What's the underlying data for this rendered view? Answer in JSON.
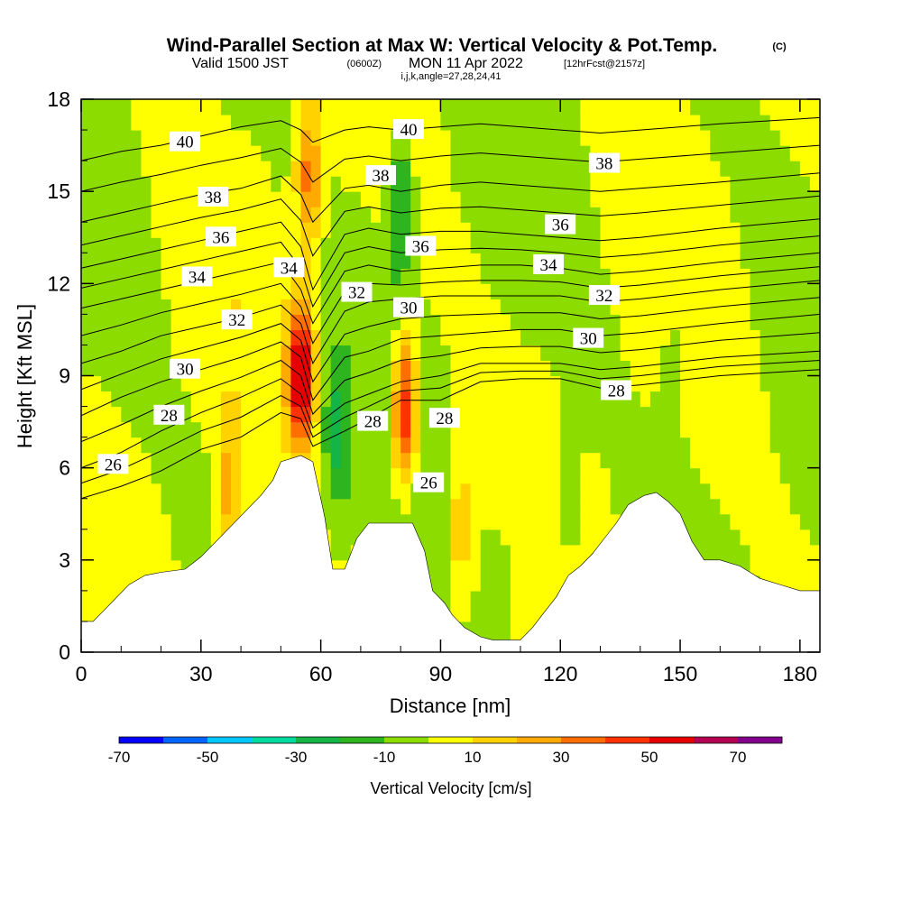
{
  "chart_data": {
    "type": "contour-section",
    "title": "Wind-Parallel Section at Max W: Vertical Velocity & Pot.Temp.",
    "copyright": "(C)",
    "subtitle_valid": "Valid 1500 JST",
    "subtitle_utc": "(0600Z)",
    "subtitle_date": "MON 11 Apr 2022",
    "subtitle_fcst": "[12hrFcst@2157z]",
    "subtitle_ijk": "i,j,k,angle=27,28,24,41",
    "xlabel": "Distance [nm]",
    "ylabel": "Height [Kft MSL]",
    "xlim": [
      0,
      185
    ],
    "ylim": [
      0,
      18
    ],
    "x_ticks": [
      0,
      30,
      60,
      90,
      120,
      150,
      180
    ],
    "y_ticks": [
      0,
      3,
      6,
      9,
      12,
      15,
      18
    ],
    "x_tick_labels": [
      "0",
      "30",
      "60",
      "90",
      "120",
      "150",
      "180"
    ],
    "y_tick_labels": [
      "0",
      "3",
      "6",
      "9",
      "12",
      "15",
      "18"
    ],
    "colorbar": {
      "title": "Vertical Velocity [cm/s]",
      "min": -70,
      "max": 80,
      "step": 10,
      "labels": [
        "-70",
        "-50",
        "-30",
        "-10",
        "10",
        "30",
        "50",
        "70"
      ],
      "colors": [
        "#0000ff",
        "#0064ff",
        "#00c8ff",
        "#00dca0",
        "#14b446",
        "#2db41e",
        "#8cdc00",
        "#ffff00",
        "#ffd200",
        "#ffaa00",
        "#ff6e00",
        "#ff3200",
        "#e60000",
        "#b40050",
        "#82008c"
      ]
    },
    "terrain_profile": {
      "x_nm": [
        0,
        3,
        6,
        9,
        12,
        16,
        20,
        26,
        30,
        33,
        36,
        39,
        42,
        45,
        48,
        50,
        55,
        58,
        61,
        63,
        66,
        69,
        72,
        75,
        79,
        83,
        86,
        88,
        91,
        93,
        96,
        100,
        103,
        107,
        110,
        113,
        116,
        119,
        122,
        125,
        128,
        131,
        134,
        137,
        141,
        144,
        147,
        150,
        153,
        156,
        160,
        165,
        170,
        175,
        180,
        185
      ],
      "height_kft": [
        1.0,
        1.0,
        1.4,
        1.8,
        2.2,
        2.5,
        2.6,
        2.7,
        3.1,
        3.5,
        3.9,
        4.3,
        4.7,
        5.1,
        5.6,
        6.2,
        6.4,
        6.2,
        4.4,
        2.7,
        2.7,
        3.7,
        4.2,
        4.2,
        4.2,
        4.2,
        3.3,
        2.0,
        1.6,
        1.2,
        0.8,
        0.5,
        0.4,
        0.4,
        0.4,
        0.8,
        1.3,
        1.8,
        2.5,
        2.8,
        3.2,
        3.7,
        4.2,
        4.8,
        5.1,
        5.2,
        4.9,
        4.5,
        3.6,
        3.0,
        3.0,
        2.8,
        2.4,
        2.2,
        2.0,
        2.0
      ]
    },
    "isentropes": [
      {
        "theta": 26,
        "heights_kft": [
          5.0,
          5.4,
          5.9,
          6.6,
          7.0,
          7.8,
          7.6,
          6.7,
          7.2,
          7.6,
          8.2,
          8.2,
          8.8,
          8.9,
          8.9,
          8.6,
          8.7,
          9.0,
          9.2
        ]
      },
      {
        "theta": 28,
        "heights_kft": [
          6.0,
          6.5,
          7.2,
          7.8,
          8.3,
          8.9,
          8.4,
          7.3,
          8.1,
          8.4,
          8.8,
          9.0,
          9.4,
          9.4,
          9.4,
          9.2,
          9.3,
          9.6,
          9.8
        ]
      },
      {
        "theta": 30,
        "heights_kft": [
          7.7,
          8.3,
          8.8,
          9.2,
          9.6,
          10.1,
          9.6,
          8.2,
          9.6,
          9.8,
          10.2,
          10.3,
          10.4,
          10.5,
          10.5,
          10.3,
          10.4,
          10.7,
          11.0
        ]
      },
      {
        "theta": 32,
        "heights_kft": [
          9.4,
          9.8,
          10.3,
          10.6,
          10.9,
          11.3,
          10.7,
          9.4,
          11.1,
          11.4,
          11.5,
          11.6,
          11.6,
          11.6,
          11.6,
          11.4,
          11.5,
          11.8,
          12.1
        ]
      },
      {
        "theta": 34,
        "heights_kft": [
          11.2,
          11.5,
          11.8,
          12.1,
          12.4,
          12.7,
          11.8,
          10.7,
          12.4,
          12.6,
          12.4,
          12.5,
          12.6,
          12.6,
          12.5,
          12.3,
          12.4,
          12.7,
          13.0
        ]
      },
      {
        "theta": 36,
        "heights_kft": [
          12.5,
          12.8,
          13.1,
          13.4,
          13.7,
          14.0,
          13.2,
          11.8,
          13.6,
          13.8,
          13.6,
          13.7,
          13.7,
          13.6,
          13.5,
          13.4,
          13.5,
          13.8,
          14.1
        ]
      },
      {
        "theta": 38,
        "heights_kft": [
          14.0,
          14.3,
          14.6,
          14.9,
          15.1,
          15.5,
          14.9,
          14.0,
          15.1,
          15.2,
          15.0,
          15.2,
          15.3,
          15.2,
          15.1,
          15.0,
          15.1,
          15.3,
          15.6
        ]
      },
      {
        "theta": 40,
        "heights_kft": [
          16.0,
          16.3,
          16.5,
          16.8,
          17.1,
          17.3,
          17.0,
          16.6,
          17.0,
          17.1,
          17.0,
          17.1,
          17.2,
          17.1,
          17.0,
          16.9,
          17.0,
          17.2,
          17.4
        ]
      }
    ],
    "isentrope_x_nm": [
      0,
      10,
      20,
      30,
      40,
      50,
      55,
      58,
      66,
      72,
      80,
      90,
      100,
      110,
      120,
      130,
      140,
      160,
      185
    ],
    "contour_labels": [
      {
        "text": "26",
        "x_nm": 8,
        "h_kft": 6.1
      },
      {
        "text": "28",
        "x_nm": 22,
        "h_kft": 7.7
      },
      {
        "text": "30",
        "x_nm": 26,
        "h_kft": 9.2
      },
      {
        "text": "32",
        "x_nm": 39,
        "h_kft": 10.8
      },
      {
        "text": "34",
        "x_nm": 29,
        "h_kft": 12.2
      },
      {
        "text": "36",
        "x_nm": 35,
        "h_kft": 13.5
      },
      {
        "text": "38",
        "x_nm": 33,
        "h_kft": 14.8
      },
      {
        "text": "40",
        "x_nm": 26,
        "h_kft": 16.6
      },
      {
        "text": "34",
        "x_nm": 52,
        "h_kft": 12.5
      },
      {
        "text": "32",
        "x_nm": 69,
        "h_kft": 11.7
      },
      {
        "text": "38",
        "x_nm": 75,
        "h_kft": 15.5
      },
      {
        "text": "36",
        "x_nm": 85,
        "h_kft": 13.2
      },
      {
        "text": "40",
        "x_nm": 82,
        "h_kft": 17.0
      },
      {
        "text": "30",
        "x_nm": 82,
        "h_kft": 11.2
      },
      {
        "text": "28",
        "x_nm": 73,
        "h_kft": 7.5
      },
      {
        "text": "28",
        "x_nm": 91,
        "h_kft": 7.6
      },
      {
        "text": "26",
        "x_nm": 87,
        "h_kft": 5.5
      },
      {
        "text": "38",
        "x_nm": 131,
        "h_kft": 15.9
      },
      {
        "text": "36",
        "x_nm": 120,
        "h_kft": 13.9
      },
      {
        "text": "34",
        "x_nm": 117,
        "h_kft": 12.6
      },
      {
        "text": "32",
        "x_nm": 131,
        "h_kft": 11.6
      },
      {
        "text": "30",
        "x_nm": 127,
        "h_kft": 10.2
      },
      {
        "text": "28",
        "x_nm": 134,
        "h_kft": 8.5
      }
    ],
    "velocity_features_cm_s": [
      {
        "x_nm": 55,
        "h_kft": 9.0,
        "w": 65
      },
      {
        "x_nm": 81,
        "h_kft": 7.8,
        "w": 55
      },
      {
        "x_nm": 57,
        "h_kft": 15.5,
        "w": 35
      },
      {
        "x_nm": 80,
        "h_kft": 14.5,
        "w": -25
      },
      {
        "x_nm": 64,
        "h_kft": 7.0,
        "w": -25
      },
      {
        "x_nm": 37,
        "h_kft": 5.2,
        "w": 25
      },
      {
        "x_nm": 95,
        "h_kft": 4.0,
        "w": 20
      },
      {
        "x_nm": 105,
        "h_kft": 2.0,
        "w": -10
      },
      {
        "x_nm": 122,
        "h_kft": 5.0,
        "w": -15
      },
      {
        "x_nm": 148,
        "h_kft": 9.0,
        "w": -12
      }
    ]
  }
}
